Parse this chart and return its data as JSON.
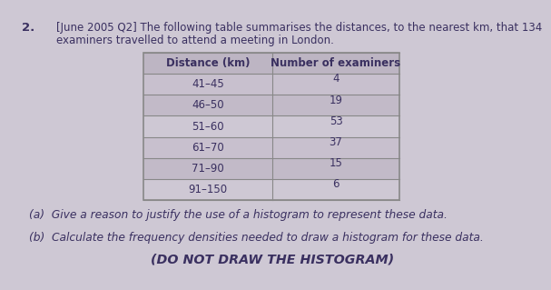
{
  "question_number": "2.",
  "header_line1": "[June 2005 Q2] The following table summarises the distances, to the nearest km, that 134",
  "header_line2": "examiners travelled to attend a meeting in London.",
  "table_col1_header": "Distance (km)",
  "table_col2_header": "Number of examiners",
  "table_rows": [
    [
      "41–45",
      "4"
    ],
    [
      "46–50",
      "19"
    ],
    [
      "51–60",
      "53"
    ],
    [
      "61–70",
      "37"
    ],
    [
      "71–90",
      "15"
    ],
    [
      "91–150",
      "6"
    ]
  ],
  "part_a": "(a)  Give a reason to justify the use of a histogram to represent these data.",
  "part_b": "(b)  Calculate the frequency densities needed to draw a histogram for these data.",
  "part_b2": "(DO NOT DRAW THE HISTOGRAM)",
  "bg_color": "#cec8d4",
  "text_color": "#3a3060",
  "table_line_color": "#888888",
  "font_size_main": 8.5,
  "font_size_table": 8.5,
  "font_size_parts": 8.8,
  "font_size_bold": 10.0
}
